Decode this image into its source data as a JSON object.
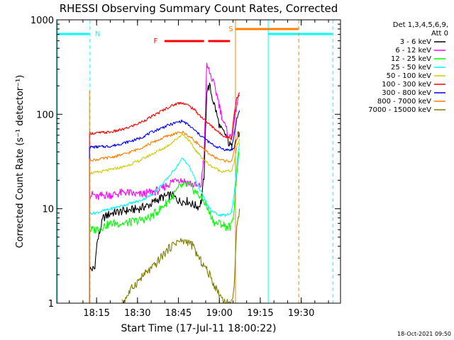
{
  "chart_data": {
    "type": "line",
    "title": "RHESSI Observing Summary Count Rates, Corrected",
    "xlabel": "Start Time (17-Jul-11 18:00:22)",
    "ylabel": "Corrected Count Rate (s⁻¹ detector⁻¹)",
    "x_unit": "minutes after 18:00:22",
    "xlim": [
      0,
      104
    ],
    "ylim": [
      1,
      1000
    ],
    "y_scale": "log",
    "x_ticks": [
      {
        "label": "18:15",
        "value": 14.6
      },
      {
        "label": "18:30",
        "value": 29.6
      },
      {
        "label": "18:45",
        "value": 44.6
      },
      {
        "label": "19:00",
        "value": 59.6
      },
      {
        "label": "19:15",
        "value": 74.6
      },
      {
        "label": "19:30",
        "value": 89.6
      }
    ],
    "y_ticks": [
      {
        "label": "1",
        "value": 1
      },
      {
        "label": "10",
        "value": 10
      },
      {
        "label": "100",
        "value": 100
      },
      {
        "label": "1000",
        "value": 1000
      }
    ],
    "legend": {
      "placement": "right",
      "header": [
        "Det 1,3,4,5,6,9,",
        "Att 0"
      ]
    },
    "series": [
      {
        "name": "3 - 6 keV",
        "color": "#000000",
        "points": [
          [
            12,
            2.3
          ],
          [
            14,
            2.3
          ],
          [
            14.5,
            4
          ],
          [
            17,
            8
          ],
          [
            20,
            9
          ],
          [
            25,
            9.5
          ],
          [
            30,
            10
          ],
          [
            34,
            11
          ],
          [
            38,
            13
          ],
          [
            42,
            14
          ],
          [
            45,
            12
          ],
          [
            48,
            12
          ],
          [
            50,
            11
          ],
          [
            52,
            10.5
          ],
          [
            53,
            12
          ],
          [
            54,
            22
          ],
          [
            55,
            180
          ],
          [
            56,
            200
          ],
          [
            57,
            150
          ],
          [
            58,
            120
          ],
          [
            59,
            90
          ],
          [
            60,
            70
          ],
          [
            61,
            65
          ],
          [
            62,
            60
          ],
          [
            63,
            50
          ],
          [
            64,
            45
          ],
          [
            65,
            48
          ],
          [
            66,
            55
          ],
          [
            67,
            65
          ]
        ]
      },
      {
        "name": "6 - 12 keV",
        "color": "#ff00ff",
        "points": [
          [
            12,
            14
          ],
          [
            14,
            14
          ],
          [
            14.5,
            13
          ],
          [
            17,
            14
          ],
          [
            20,
            14
          ],
          [
            25,
            15
          ],
          [
            30,
            14
          ],
          [
            35,
            15
          ],
          [
            38,
            16
          ],
          [
            42,
            19
          ],
          [
            44,
            21
          ],
          [
            46,
            20
          ],
          [
            48,
            19
          ],
          [
            50,
            18
          ],
          [
            52,
            17
          ],
          [
            53,
            18
          ],
          [
            54,
            40
          ],
          [
            55,
            330
          ],
          [
            56,
            280
          ],
          [
            57,
            230
          ],
          [
            58,
            190
          ],
          [
            59,
            150
          ],
          [
            60,
            110
          ],
          [
            61,
            85
          ],
          [
            62,
            70
          ],
          [
            63,
            60
          ],
          [
            64,
            55
          ],
          [
            65,
            80
          ],
          [
            66,
            130
          ],
          [
            67,
            160
          ]
        ]
      },
      {
        "name": "12 - 25 keV",
        "color": "#00ff00",
        "points": [
          [
            12,
            6
          ],
          [
            14,
            6
          ],
          [
            17,
            6.5
          ],
          [
            20,
            7
          ],
          [
            25,
            7
          ],
          [
            30,
            7.5
          ],
          [
            34,
            8
          ],
          [
            38,
            10
          ],
          [
            42,
            13
          ],
          [
            45,
            17
          ],
          [
            48,
            18
          ],
          [
            50,
            16
          ],
          [
            52,
            14
          ],
          [
            54,
            12
          ],
          [
            56,
            9
          ],
          [
            58,
            7
          ],
          [
            60,
            7
          ],
          [
            62,
            6.5
          ],
          [
            64,
            6.5
          ],
          [
            65,
            10
          ],
          [
            66,
            25
          ],
          [
            67,
            40
          ]
        ]
      },
      {
        "name": "25 - 50 keV",
        "color": "#00ffff",
        "points": [
          [
            12,
            9
          ],
          [
            14,
            9
          ],
          [
            17,
            9.5
          ],
          [
            20,
            10
          ],
          [
            25,
            11
          ],
          [
            30,
            12
          ],
          [
            35,
            14
          ],
          [
            40,
            20
          ],
          [
            44,
            28
          ],
          [
            46,
            34
          ],
          [
            48,
            30
          ],
          [
            50,
            23
          ],
          [
            52,
            17
          ],
          [
            54,
            13
          ],
          [
            56,
            10
          ],
          [
            58,
            9
          ],
          [
            60,
            8.5
          ],
          [
            62,
            8.5
          ],
          [
            64,
            9
          ],
          [
            65,
            14
          ],
          [
            66,
            30
          ],
          [
            67,
            50
          ]
        ]
      },
      {
        "name": "50 - 100 keV",
        "color": "#cccc00",
        "points": [
          [
            12,
            24
          ],
          [
            14,
            24
          ],
          [
            20,
            26
          ],
          [
            25,
            28
          ],
          [
            30,
            32
          ],
          [
            35,
            38
          ],
          [
            40,
            45
          ],
          [
            44,
            55
          ],
          [
            46,
            62
          ],
          [
            48,
            55
          ],
          [
            50,
            45
          ],
          [
            52,
            38
          ],
          [
            54,
            33
          ],
          [
            56,
            29
          ],
          [
            58,
            27
          ],
          [
            60,
            25
          ],
          [
            62,
            25
          ],
          [
            64,
            25
          ],
          [
            65,
            30
          ],
          [
            66,
            45
          ],
          [
            67,
            55
          ]
        ]
      },
      {
        "name": "100 - 300 keV",
        "color": "#ff0000",
        "points": [
          [
            12,
            63
          ],
          [
            14,
            63
          ],
          [
            20,
            65
          ],
          [
            25,
            70
          ],
          [
            30,
            80
          ],
          [
            35,
            95
          ],
          [
            40,
            115
          ],
          [
            44,
            130
          ],
          [
            46,
            133
          ],
          [
            48,
            125
          ],
          [
            50,
            115
          ],
          [
            52,
            100
          ],
          [
            54,
            88
          ],
          [
            56,
            78
          ],
          [
            58,
            70
          ],
          [
            60,
            62
          ],
          [
            62,
            58
          ],
          [
            64,
            55
          ],
          [
            65,
            100
          ],
          [
            66,
            150
          ],
          [
            67,
            170
          ]
        ]
      },
      {
        "name": "300 - 800 keV",
        "color": "#0000ff",
        "points": [
          [
            12,
            45
          ],
          [
            14,
            45
          ],
          [
            20,
            46
          ],
          [
            25,
            50
          ],
          [
            30,
            55
          ],
          [
            35,
            65
          ],
          [
            40,
            75
          ],
          [
            44,
            82
          ],
          [
            46,
            85
          ],
          [
            48,
            78
          ],
          [
            50,
            70
          ],
          [
            52,
            62
          ],
          [
            54,
            56
          ],
          [
            56,
            50
          ],
          [
            58,
            46
          ],
          [
            60,
            44
          ],
          [
            62,
            42
          ],
          [
            64,
            42
          ],
          [
            65,
            60
          ],
          [
            66,
            90
          ],
          [
            67,
            110
          ]
        ]
      },
      {
        "name": "800 - 7000 keV",
        "color": "#ff8000",
        "points": [
          [
            12,
            33
          ],
          [
            14,
            33
          ],
          [
            20,
            35
          ],
          [
            25,
            38
          ],
          [
            30,
            43
          ],
          [
            35,
            50
          ],
          [
            40,
            58
          ],
          [
            44,
            63
          ],
          [
            46,
            65
          ],
          [
            48,
            60
          ],
          [
            50,
            54
          ],
          [
            52,
            48
          ],
          [
            54,
            42
          ],
          [
            56,
            38
          ],
          [
            58,
            35
          ],
          [
            60,
            33
          ],
          [
            62,
            32
          ],
          [
            64,
            32
          ],
          [
            65,
            40
          ],
          [
            66,
            55
          ],
          [
            67,
            65
          ]
        ]
      },
      {
        "name": "7000 - 15000 keV",
        "color": "#808000",
        "points": [
          [
            24,
            1
          ],
          [
            28,
            1.5
          ],
          [
            32,
            2
          ],
          [
            36,
            2.5
          ],
          [
            38,
            3
          ],
          [
            40,
            3.5
          ],
          [
            42,
            4
          ],
          [
            44,
            4.5
          ],
          [
            46,
            4.5
          ],
          [
            48,
            4.5
          ],
          [
            50,
            4
          ],
          [
            52,
            3
          ],
          [
            54,
            2.5
          ],
          [
            56,
            2
          ],
          [
            58,
            1.5
          ],
          [
            60,
            1.2
          ],
          [
            62,
            1
          ],
          [
            64,
            1
          ],
          [
            65,
            1.5
          ],
          [
            66,
            6
          ],
          [
            67,
            10
          ]
        ]
      }
    ],
    "annotations": [
      {
        "text": "N",
        "color": "#00ffff"
      },
      {
        "text": "F",
        "color": "#ff0000"
      },
      {
        "text": "S",
        "color": "#ff8000"
      }
    ],
    "timestamp": "18-Oct-2021 09:50"
  }
}
